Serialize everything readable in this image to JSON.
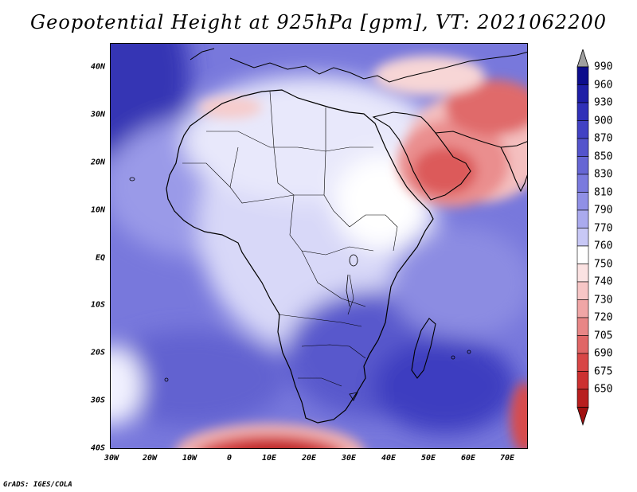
{
  "title": "Geopotential Height at 925hPa [gpm], VT: 2021062200",
  "credit": "GrADS: IGES/COLA",
  "axes": {
    "y_labels": [
      "40N",
      "30N",
      "20N",
      "10N",
      "EQ",
      "10S",
      "20S",
      "30S",
      "40S"
    ],
    "x_labels": [
      "30W",
      "20W",
      "10W",
      "0",
      "10E",
      "20E",
      "30E",
      "40E",
      "50E",
      "60E",
      "70E"
    ]
  },
  "colorbar": {
    "levels": [
      "990",
      "960",
      "930",
      "900",
      "870",
      "850",
      "830",
      "810",
      "790",
      "770",
      "760",
      "750",
      "740",
      "730",
      "720",
      "705",
      "690",
      "675",
      "650"
    ],
    "colors": [
      "#0c0c8c",
      "#1e1ea6",
      "#3030b8",
      "#4242c4",
      "#5454cc",
      "#6666d4",
      "#7a7ade",
      "#9090e6",
      "#aaaaee",
      "#c8c8f6",
      "#ffffff",
      "#fbe2e2",
      "#f7c6c6",
      "#f0a6a6",
      "#e88686",
      "#e06666",
      "#d84646",
      "#cc3030",
      "#b81e1e",
      "#a01010"
    ],
    "arrow_top": "#a0a0a0"
  }
}
